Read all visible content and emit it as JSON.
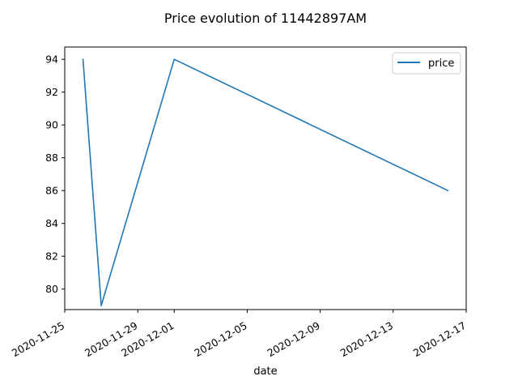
{
  "chart_data": {
    "type": "line",
    "title": "Price evolution of 11442897AM",
    "xlabel": "date",
    "ylabel": "",
    "x_ticks": [
      "2020-11-25",
      "2020-11-29",
      "2020-12-01",
      "2020-12-05",
      "2020-12-09",
      "2020-12-13",
      "2020-12-17"
    ],
    "y_ticks": [
      80,
      82,
      84,
      86,
      88,
      90,
      92,
      94
    ],
    "xlim": [
      "2020-11-25",
      "2020-12-17"
    ],
    "ylim": [
      78.75,
      94.75
    ],
    "grid": false,
    "legend_position": "top-right",
    "series": [
      {
        "name": "price",
        "color": "#1f77b4",
        "points": [
          {
            "x": "2020-11-26",
            "y": 94
          },
          {
            "x": "2020-11-27",
            "y": 79
          },
          {
            "x": "2020-12-01",
            "y": 94
          },
          {
            "x": "2020-12-16",
            "y": 86
          }
        ]
      }
    ]
  }
}
